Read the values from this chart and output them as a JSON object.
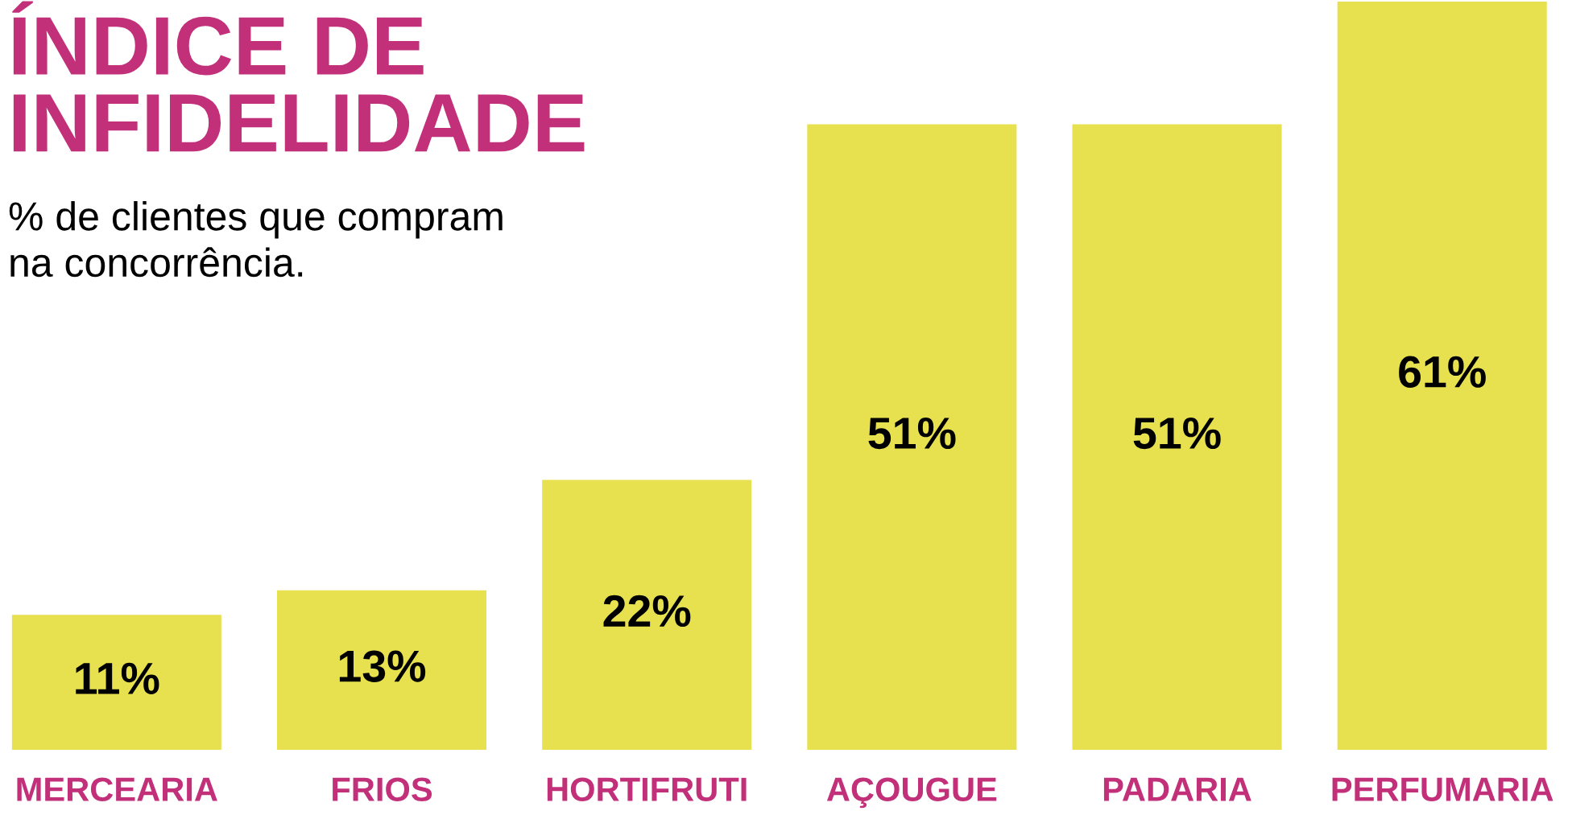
{
  "chart_data": {
    "type": "bar",
    "title": "ÍNDICE DE\nINFIDELIDADE",
    "subtitle": "% de clientes que compram\nna concorrência.",
    "categories": [
      "MERCEARIA",
      "FRIOS",
      "HORTIFRUTI",
      "AÇOUGUE",
      "PADARIA",
      "PERFUMARIA"
    ],
    "values": [
      11,
      13,
      22,
      51,
      51,
      61
    ],
    "value_labels": [
      "11%",
      "13%",
      "22%",
      "51%",
      "51%",
      "61%"
    ],
    "color": "#e8e14f",
    "grid": false,
    "legend": false
  }
}
